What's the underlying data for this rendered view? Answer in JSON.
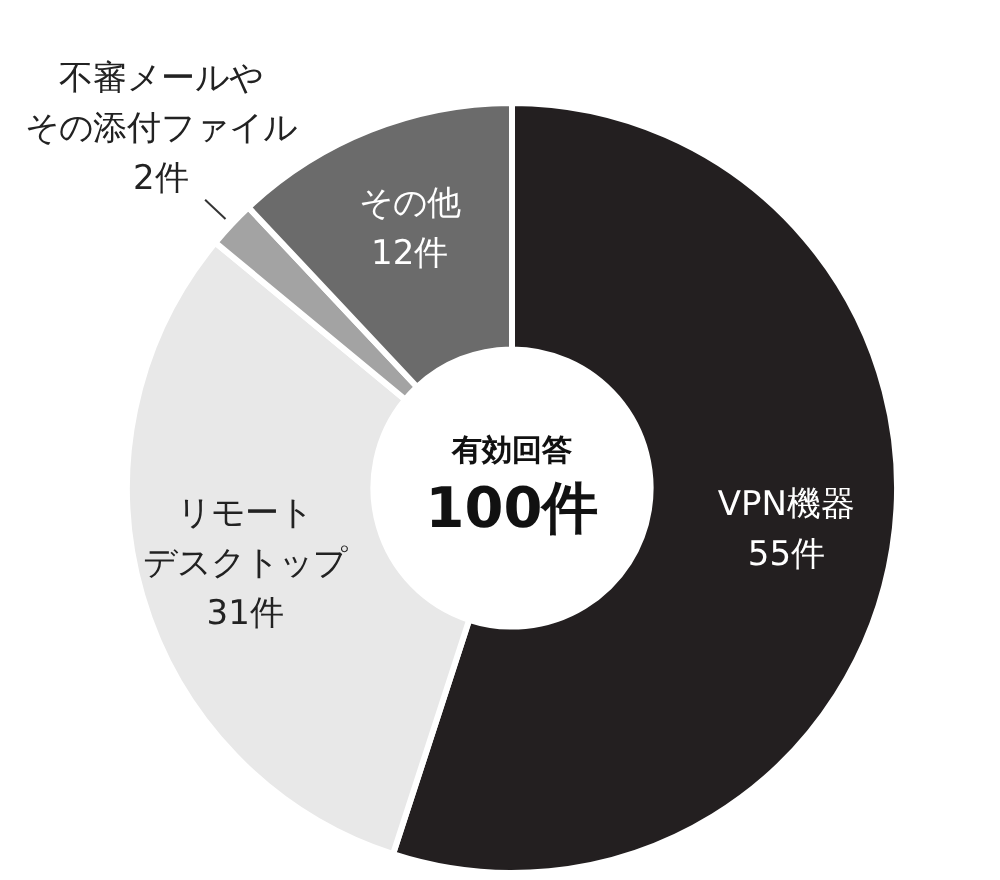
{
  "chart_data": {
    "type": "donut",
    "categories": [
      "VPN機器",
      "リモートデスクトップ",
      "不審メールやその添付ファイル",
      "その他"
    ],
    "values": [
      55,
      31,
      2,
      12
    ],
    "value_labels": [
      "55件",
      "31件",
      "2件",
      "12件"
    ],
    "colors": [
      "#231f20",
      "#e8e8e8",
      "#a3a3a3",
      "#6b6b6b"
    ],
    "annotations": [
      "有効回答",
      "100件"
    ],
    "legend": false
  }
}
